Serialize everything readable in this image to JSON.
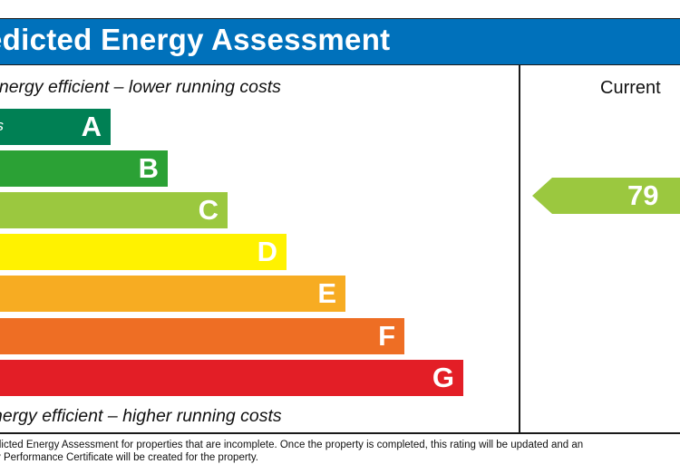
{
  "header": {
    "title": "edicted Energy Assessment",
    "color": "#0071bb"
  },
  "captions": {
    "top": "energy efficient – lower running costs",
    "bottom": "nergy efficient – higher running costs"
  },
  "current": {
    "label": "Current",
    "value": "79",
    "arrow_color": "#8dc63f"
  },
  "bands": [
    {
      "letter": "A",
      "range": "us",
      "color": "#008054"
    },
    {
      "letter": "B",
      "range": "",
      "color": "#19b459"
    },
    {
      "letter": "C",
      "range": "",
      "color": "#8dce46"
    },
    {
      "letter": "D",
      "range": "",
      "color": "#ffd500"
    },
    {
      "letter": "E",
      "range": "",
      "color": "#fcaa65"
    },
    {
      "letter": "F",
      "range": "",
      "color": "#ef8023"
    },
    {
      "letter": "G",
      "range": "",
      "color": "#e9153b"
    }
  ],
  "footer": {
    "line1": "dicted Energy Assessment for properties that are incomplete. Once the property is completed, this rating will be updated and an",
    "line2": "y Performance Certificate will be created for the property."
  }
}
